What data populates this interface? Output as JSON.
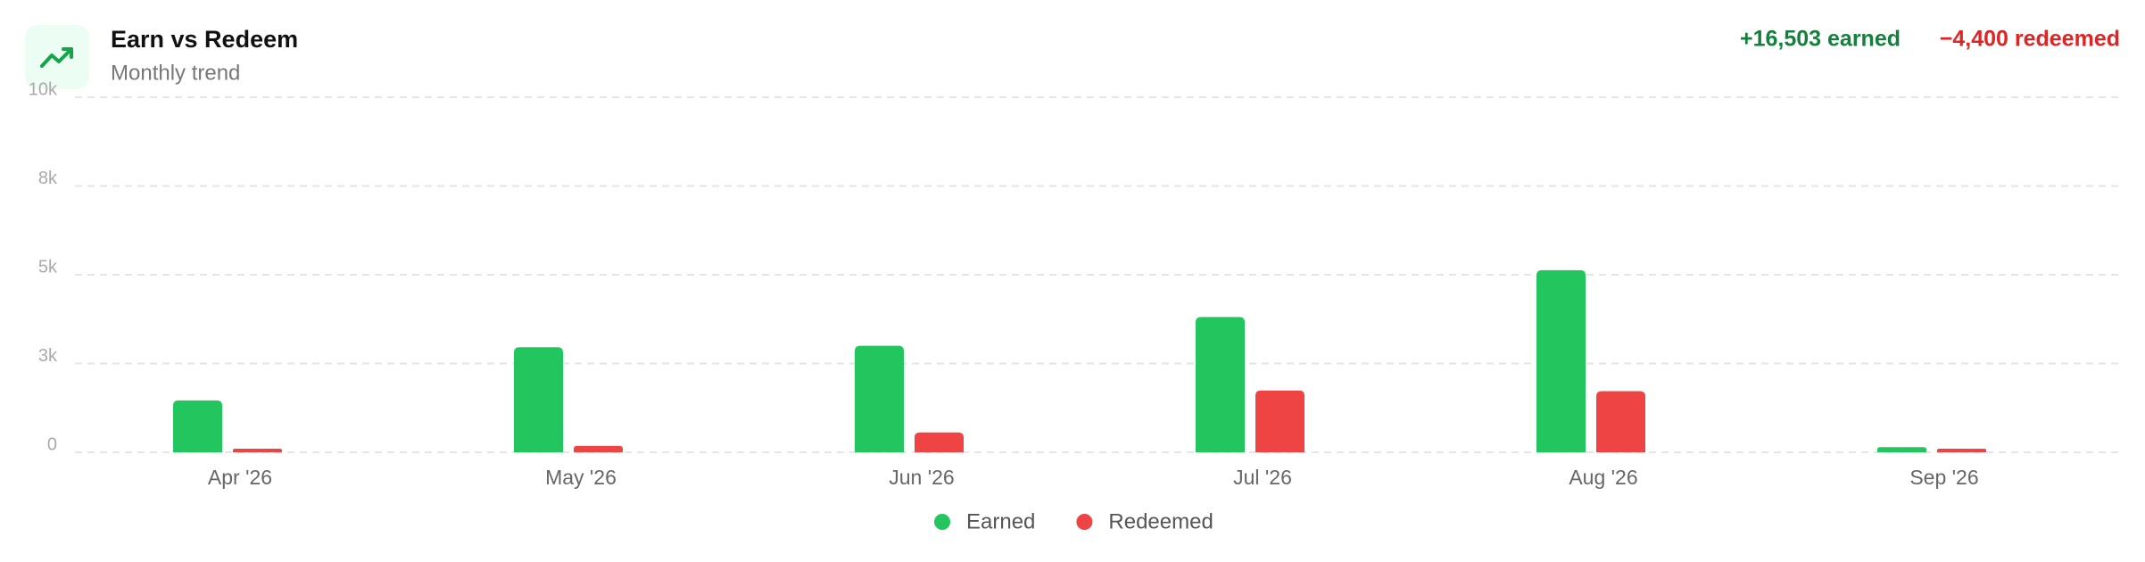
{
  "chart_data": {
    "type": "bar",
    "title": "Earn vs Redeem",
    "subtitle": "Monthly trend",
    "summary": {
      "earned": "+16,503 earned",
      "redeemed": "−4,400 redeemed"
    },
    "categories": [
      "Apr '26",
      "May '26",
      "Jun '26",
      "Jul '26",
      "Aug '26",
      "Sep '26"
    ],
    "series": [
      {
        "name": "Earned",
        "color": "#22c55e",
        "values": [
          1460,
          2960,
          3000,
          3810,
          5130,
          143
        ]
      },
      {
        "name": "Redeemed",
        "color": "#ef4444",
        "values": [
          100,
          180,
          560,
          1740,
          1720,
          100
        ]
      }
    ],
    "ylim": [
      0,
      10000
    ],
    "yticks": [
      0,
      {
        "value": 2500,
        "label": "3k"
      },
      {
        "value": 5000,
        "label": "5k"
      },
      {
        "value": 7500,
        "label": "8k"
      },
      {
        "value": 10000,
        "label": "10k"
      }
    ],
    "grid": true,
    "legend": "bottom"
  }
}
